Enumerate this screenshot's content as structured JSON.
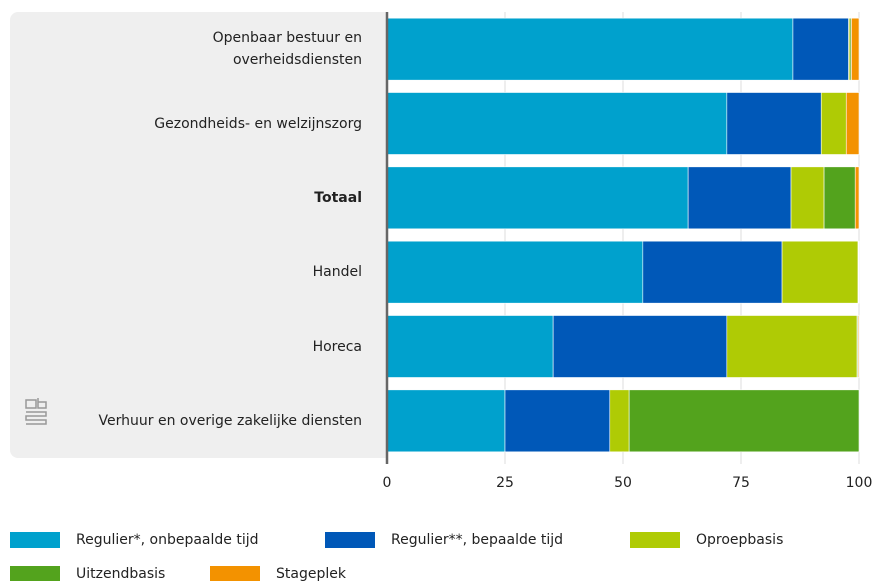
{
  "chart_data": {
    "type": "stacked_bar_horizontal",
    "categories": [
      "Openbaar bestuur en\noverheidsdiensten",
      "Gezondheids- en welzijnszorg",
      "Totaal",
      "Handel",
      "Horeca",
      "Verhuur en overige zakelijke diensten"
    ],
    "highlight_index": 2,
    "series": [
      {
        "name": "Regulier*, onbepaalde tijd",
        "color": "#00a1cd",
        "values": [
          86,
          72,
          63.8,
          54.2,
          35.2,
          25
        ]
      },
      {
        "name": "Regulier**, bepaalde tijd",
        "color": "#0058b8",
        "values": [
          11.8,
          20,
          21.8,
          29.5,
          36.8,
          22.2
        ]
      },
      {
        "name": "Oproepbasis",
        "color": "#afcb05",
        "values": [
          0.3,
          5.3,
          7,
          16.1,
          27.6,
          4.1
        ]
      },
      {
        "name": "Uitzendbasis",
        "color": "#53a31d",
        "values": [
          0.3,
          0,
          6.6,
          0.1,
          0.2,
          48.7
        ]
      },
      {
        "name": "Stageplek",
        "color": "#f39200",
        "values": [
          1.6,
          2.7,
          0.8,
          0.1,
          0.2,
          0
        ]
      }
    ],
    "xlim": [
      0,
      100
    ],
    "xticks": [
      0,
      25,
      50,
      75,
      100
    ],
    "grid": true
  }
}
